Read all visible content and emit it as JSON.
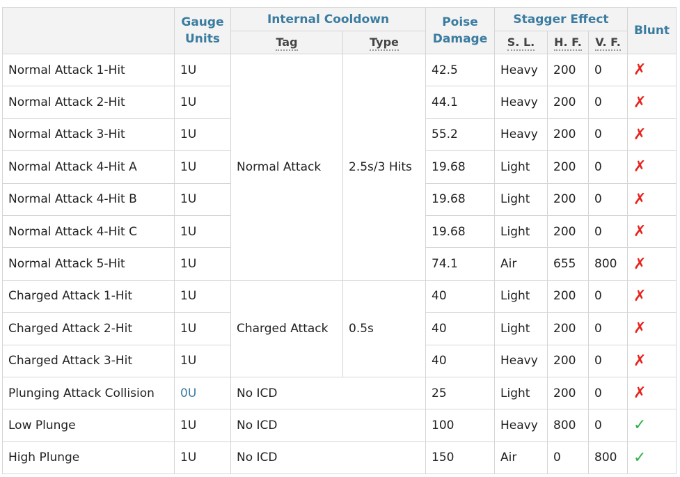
{
  "headers": {
    "gauge": "Gauge Units",
    "icd": "Internal Cooldown",
    "tag": "Tag",
    "type": "Type",
    "poise": "Poise Damage",
    "stagger": "Stagger Effect",
    "sl": "S. L.",
    "hf": "H. F.",
    "vf": "V. F.",
    "blunt": "Blunt"
  },
  "icd_groups": {
    "normal": {
      "tag": "Normal Attack",
      "type": "2.5s/3 Hits"
    },
    "charged": {
      "tag": "Charged Attack",
      "type": "0.5s"
    }
  },
  "rows": [
    {
      "name": "Normal Attack 1-Hit",
      "gauge": "1U",
      "poise": "42.5",
      "sl": "Heavy",
      "hf": "200",
      "vf": "0",
      "blunt": "✗"
    },
    {
      "name": "Normal Attack 2-Hit",
      "gauge": "1U",
      "poise": "44.1",
      "sl": "Heavy",
      "hf": "200",
      "vf": "0",
      "blunt": "✗"
    },
    {
      "name": "Normal Attack 3-Hit",
      "gauge": "1U",
      "poise": "55.2",
      "sl": "Heavy",
      "hf": "200",
      "vf": "0",
      "blunt": "✗"
    },
    {
      "name": "Normal Attack 4-Hit A",
      "gauge": "1U",
      "poise": "19.68",
      "sl": "Light",
      "hf": "200",
      "vf": "0",
      "blunt": "✗"
    },
    {
      "name": "Normal Attack 4-Hit B",
      "gauge": "1U",
      "poise": "19.68",
      "sl": "Light",
      "hf": "200",
      "vf": "0",
      "blunt": "✗"
    },
    {
      "name": "Normal Attack 4-Hit C",
      "gauge": "1U",
      "poise": "19.68",
      "sl": "Light",
      "hf": "200",
      "vf": "0",
      "blunt": "✗"
    },
    {
      "name": "Normal Attack 5-Hit",
      "gauge": "1U",
      "poise": "74.1",
      "sl": "Air",
      "hf": "655",
      "vf": "800",
      "blunt": "✗"
    },
    {
      "name": "Charged Attack 1-Hit",
      "gauge": "1U",
      "poise": "40",
      "sl": "Light",
      "hf": "200",
      "vf": "0",
      "blunt": "✗"
    },
    {
      "name": "Charged Attack 2-Hit",
      "gauge": "1U",
      "poise": "40",
      "sl": "Light",
      "hf": "200",
      "vf": "0",
      "blunt": "✗"
    },
    {
      "name": "Charged Attack 3-Hit",
      "gauge": "1U",
      "poise": "40",
      "sl": "Heavy",
      "hf": "200",
      "vf": "0",
      "blunt": "✗"
    },
    {
      "name": "Plunging Attack Collision",
      "gauge": "0U",
      "icd": "No ICD",
      "poise": "25",
      "sl": "Light",
      "hf": "200",
      "vf": "0",
      "blunt": "✗"
    },
    {
      "name": "Low Plunge",
      "gauge": "1U",
      "icd": "No ICD",
      "poise": "100",
      "sl": "Heavy",
      "hf": "800",
      "vf": "0",
      "blunt": "✓"
    },
    {
      "name": "High Plunge",
      "gauge": "1U",
      "icd": "No ICD",
      "poise": "150",
      "sl": "Air",
      "hf": "0",
      "vf": "800",
      "blunt": "✓"
    }
  ],
  "colors": {
    "header_text": "#3a7ca0",
    "no_mark": "#e8231d",
    "yes_mark": "#2fb24a"
  }
}
